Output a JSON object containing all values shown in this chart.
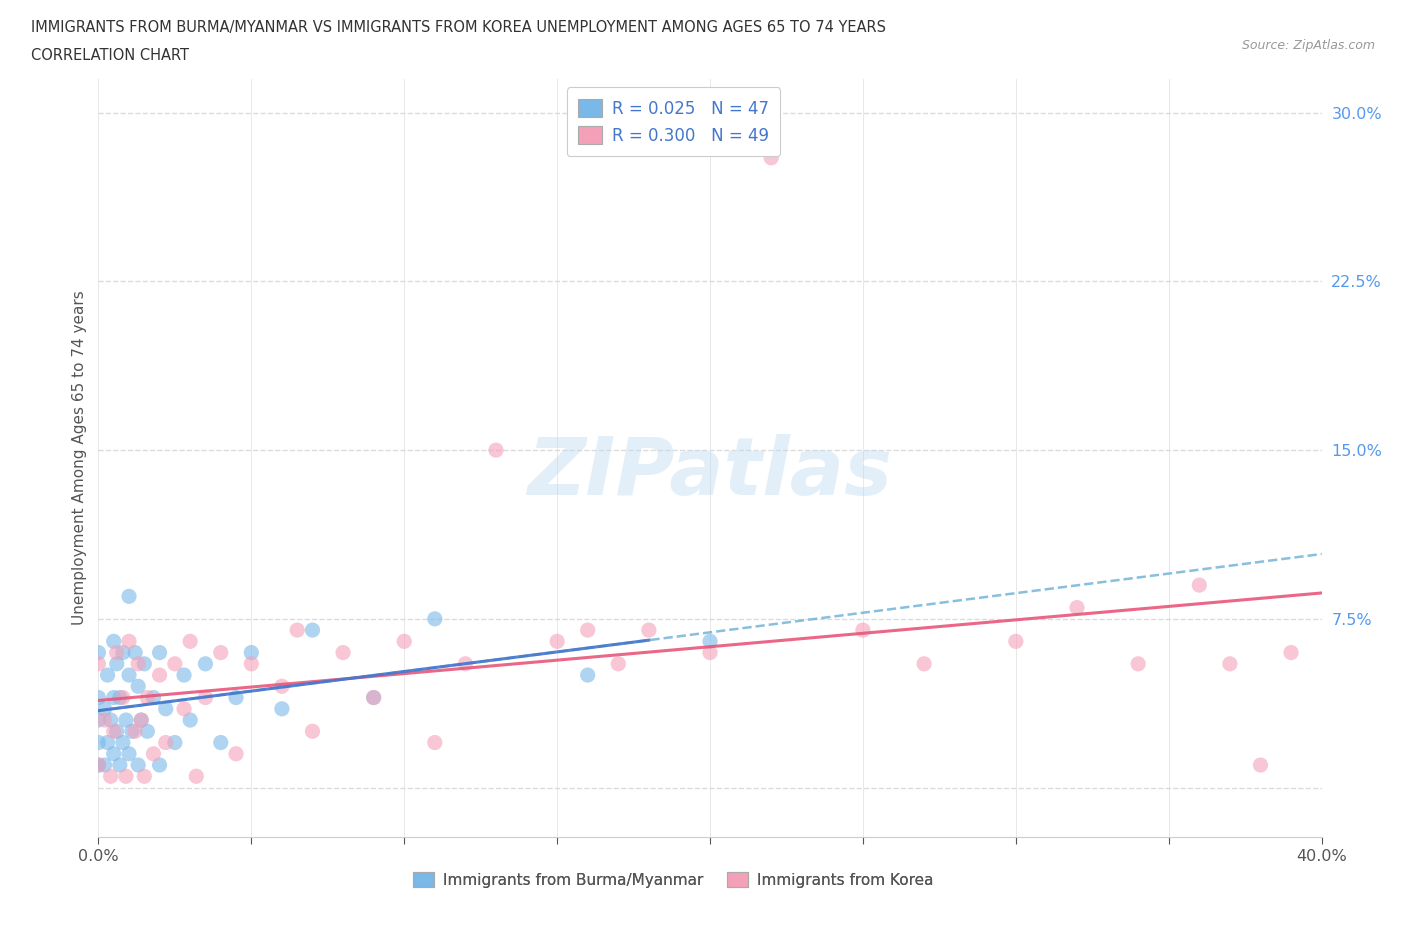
{
  "title_line1": "IMMIGRANTS FROM BURMA/MYANMAR VS IMMIGRANTS FROM KOREA UNEMPLOYMENT AMONG AGES 65 TO 74 YEARS",
  "title_line2": "CORRELATION CHART",
  "source_text": "Source: ZipAtlas.com",
  "ylabel": "Unemployment Among Ages 65 to 74 years",
  "x_min": 0.0,
  "x_max": 0.4,
  "y_min": -0.022,
  "y_max": 0.315,
  "x_ticks": [
    0.0,
    0.05,
    0.1,
    0.15,
    0.2,
    0.25,
    0.3,
    0.35,
    0.4
  ],
  "x_tick_labels": [
    "0.0%",
    "",
    "",
    "",
    "",
    "",
    "",
    "",
    "40.0%"
  ],
  "y_ticks": [
    0.0,
    0.075,
    0.15,
    0.225,
    0.3
  ],
  "y_tick_labels": [
    "",
    "7.5%",
    "15.0%",
    "22.5%",
    "30.0%"
  ],
  "color_blue": "#7ab8e8",
  "color_pink": "#f4a0b8",
  "color_blue_dark": "#4477cc",
  "color_blue_line": "#6baed6",
  "color_pink_line": "#e8567a",
  "background_color": "#ffffff",
  "grid_color": "#d8d8d8",
  "blue_scatter_x": [
    0.0,
    0.0,
    0.0,
    0.0,
    0.0,
    0.002,
    0.002,
    0.003,
    0.003,
    0.004,
    0.005,
    0.005,
    0.005,
    0.006,
    0.006,
    0.007,
    0.007,
    0.008,
    0.008,
    0.009,
    0.01,
    0.01,
    0.01,
    0.011,
    0.012,
    0.013,
    0.013,
    0.014,
    0.015,
    0.016,
    0.018,
    0.02,
    0.02,
    0.022,
    0.025,
    0.028,
    0.03,
    0.035,
    0.04,
    0.045,
    0.05,
    0.06,
    0.07,
    0.09,
    0.11,
    0.16,
    0.2
  ],
  "blue_scatter_y": [
    0.01,
    0.02,
    0.03,
    0.04,
    0.06,
    0.01,
    0.035,
    0.02,
    0.05,
    0.03,
    0.015,
    0.04,
    0.065,
    0.025,
    0.055,
    0.01,
    0.04,
    0.02,
    0.06,
    0.03,
    0.015,
    0.05,
    0.085,
    0.025,
    0.06,
    0.01,
    0.045,
    0.03,
    0.055,
    0.025,
    0.04,
    0.01,
    0.06,
    0.035,
    0.02,
    0.05,
    0.03,
    0.055,
    0.02,
    0.04,
    0.06,
    0.035,
    0.07,
    0.04,
    0.075,
    0.05,
    0.065
  ],
  "pink_scatter_x": [
    0.0,
    0.0,
    0.002,
    0.004,
    0.005,
    0.006,
    0.008,
    0.009,
    0.01,
    0.012,
    0.013,
    0.014,
    0.015,
    0.016,
    0.018,
    0.02,
    0.022,
    0.025,
    0.028,
    0.03,
    0.032,
    0.035,
    0.04,
    0.045,
    0.05,
    0.06,
    0.065,
    0.07,
    0.08,
    0.09,
    0.1,
    0.11,
    0.12,
    0.13,
    0.15,
    0.16,
    0.17,
    0.18,
    0.2,
    0.22,
    0.25,
    0.27,
    0.3,
    0.32,
    0.34,
    0.36,
    0.37,
    0.38,
    0.39
  ],
  "pink_scatter_y": [
    0.01,
    0.055,
    0.03,
    0.005,
    0.025,
    0.06,
    0.04,
    0.005,
    0.065,
    0.025,
    0.055,
    0.03,
    0.005,
    0.04,
    0.015,
    0.05,
    0.02,
    0.055,
    0.035,
    0.065,
    0.005,
    0.04,
    0.06,
    0.015,
    0.055,
    0.045,
    0.07,
    0.025,
    0.06,
    0.04,
    0.065,
    0.02,
    0.055,
    0.15,
    0.065,
    0.07,
    0.055,
    0.07,
    0.06,
    0.28,
    0.07,
    0.055,
    0.065,
    0.08,
    0.055,
    0.09,
    0.055,
    0.01,
    0.06
  ]
}
